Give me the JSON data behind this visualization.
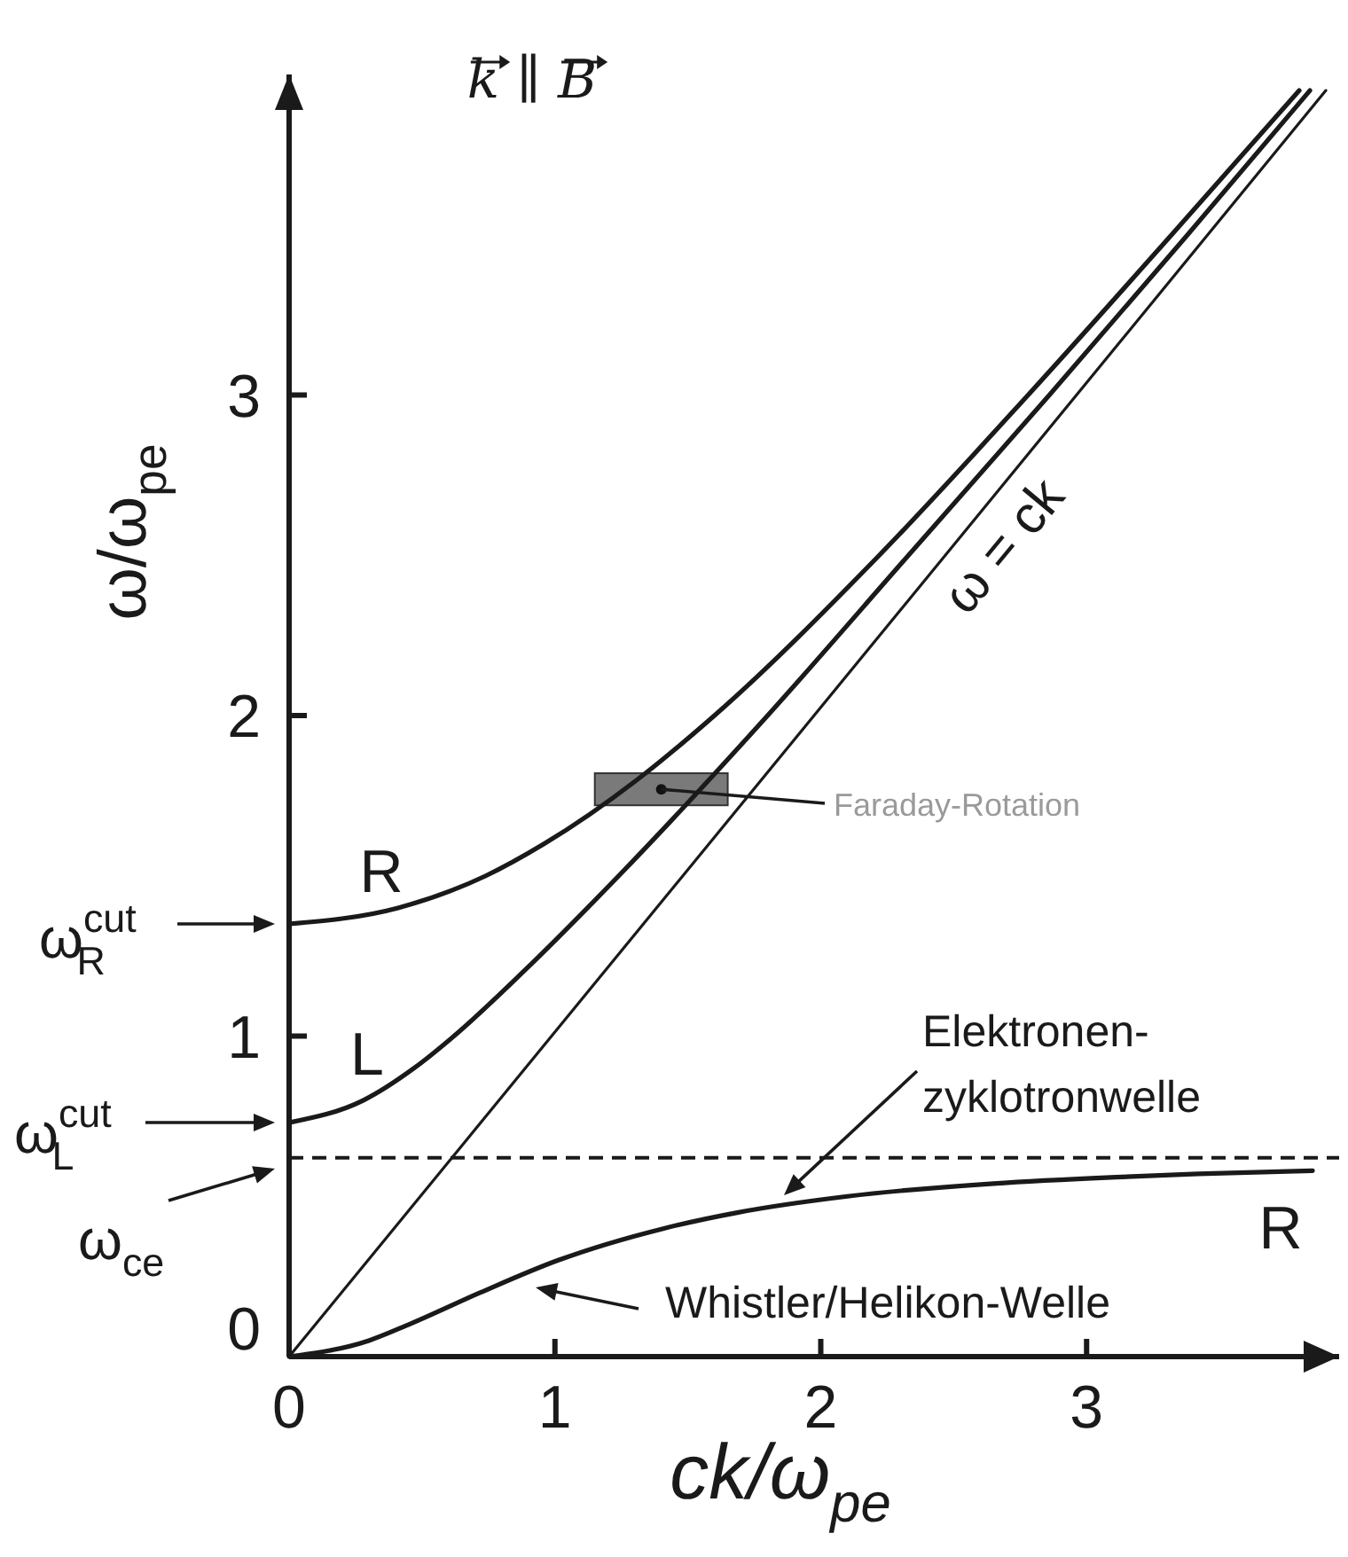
{
  "chart_data": {
    "type": "line",
    "title": "k ∥ B",
    "xlabel": "ck/ω$_{pe}$",
    "ylabel": "ω/ω$_{pe}$",
    "xlim": [
      0,
      3.95
    ],
    "ylim": [
      0,
      4
    ],
    "xticks": [
      0,
      1,
      2,
      3
    ],
    "yticks": [
      0,
      1,
      2,
      3
    ],
    "grid": false,
    "marker": "none",
    "series": [
      {
        "name": "R",
        "color": "#1a1a1a",
        "x": [
          0,
          0.41,
          0.74,
          0.96,
          1.31,
          1.6,
          2.22,
          2.78,
          3.32,
          3.8
        ],
        "values": [
          1.35,
          1.4,
          1.5,
          1.6,
          1.8,
          2.0,
          2.5,
          3.0,
          3.5,
          3.95
        ]
      },
      {
        "name": "L",
        "color": "#1a1a1a",
        "x": [
          0,
          0.28,
          0.47,
          0.62,
          0.88,
          1.24,
          1.8,
          2.33,
          2.86,
          3.38,
          3.84
        ],
        "values": [
          0.73,
          0.8,
          0.9,
          1.0,
          1.2,
          1.5,
          2.0,
          2.5,
          3.0,
          3.5,
          3.95
        ]
      },
      {
        "name": "ω = ck",
        "color": "#1a1a1a",
        "x": [
          0,
          3.9
        ],
        "values": [
          0,
          3.95
        ]
      },
      {
        "name": "R",
        "color": "#1a1a1a",
        "x": [
          0,
          0.3,
          0.45,
          0.72,
          1.01,
          1.41,
          1.69,
          2.1,
          2.65,
          3.11,
          3.42,
          3.85
        ],
        "values": [
          0,
          0.05,
          0.1,
          0.2,
          0.3,
          0.4,
          0.45,
          0.5,
          0.54,
          0.56,
          0.57,
          0.58
        ]
      }
    ],
    "ref_lines": [
      {
        "axis": "y",
        "value": 0.62,
        "line_style": "dashed",
        "color": "#1a1a1a"
      }
    ],
    "annotations": [
      "ω$^{cut}$$_{R}$",
      "ω$^{cut}$$_{L}$",
      {
        "text": "Faraday-Rotation",
        "x": 1.4,
        "y": 1.77
      },
      "Elektronen-\nzyklotronwelle",
      "Whistler/Helikon-Welle",
      "ω$_{ce}$"
    ]
  }
}
